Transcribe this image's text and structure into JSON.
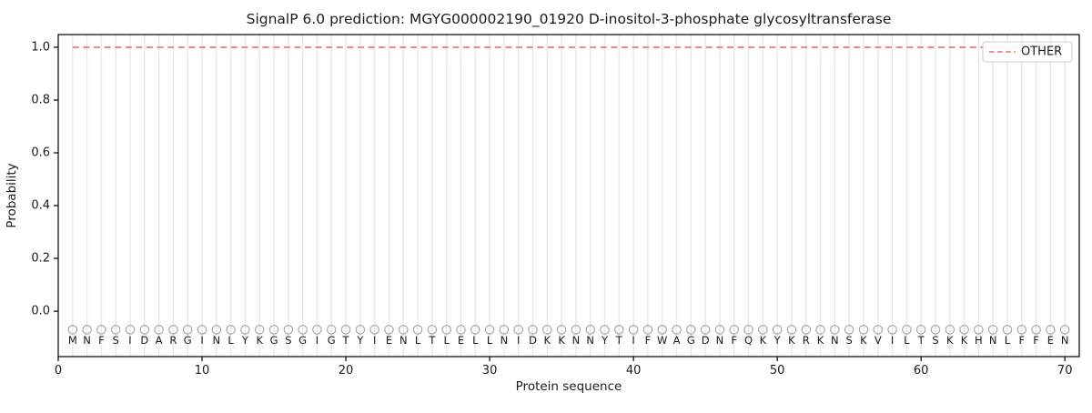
{
  "title": "SignalP 6.0 prediction: MGYG000002190_01920 D-inositol-3-phosphate glycosyltransferase",
  "colors": {
    "other_line": "#eb8181",
    "marker": "#a0a0a0",
    "grid": "#e8e8e8",
    "text": "#1a1a1a",
    "spine": "#000000",
    "legend_border": "#cccccc",
    "background": "#ffffff"
  },
  "legend": {
    "position": "upper-right",
    "entries": [
      {
        "label": "OTHER",
        "color": "#eb8181",
        "style": "dashed"
      }
    ]
  },
  "chart_data": {
    "type": "line",
    "title": "SignalP 6.0 prediction: MGYG000002190_01920 D-inositol-3-phosphate glycosyltransferase",
    "xlabel": "Protein sequence",
    "ylabel": "Probability",
    "xlim": [
      0,
      71
    ],
    "ylim": [
      -0.172,
      1.048
    ],
    "x_tick_labels": [
      "0",
      "10",
      "20",
      "30",
      "40",
      "50",
      "60",
      "70"
    ],
    "y_tick_labels": [
      "0.0",
      "0.2",
      "0.4",
      "0.6",
      "0.8",
      "1.0"
    ],
    "grid": "vertical line at every residue position",
    "legend_position": "upper-right",
    "series": [
      {
        "name": "OTHER",
        "style": "dashed",
        "color": "#eb8181",
        "x_start": 1,
        "x_end": 70,
        "y_constant": 1.0
      }
    ],
    "sequence": "MNFSIDARGINLYKGSGIGTYIENLTLELLNIDKKNNYTIFWAGDNFQKYKRKNSKVILTSKKHNLFFEN",
    "sequence_positions": [
      1,
      70
    ],
    "sequence_marker": {
      "shape": "circle-outline",
      "color": "#a0a0a0",
      "y": -0.07
    },
    "sequence_label_y": -0.11
  }
}
